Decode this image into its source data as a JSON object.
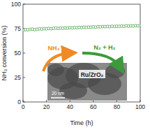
{
  "chart_data": {
    "type": "scatter",
    "x_label": "Time (h)",
    "y_label": "NH₃ conversion (%)",
    "x": [
      0,
      2,
      4,
      6,
      8,
      10,
      12,
      14,
      16,
      18,
      20,
      22,
      24,
      26,
      28,
      30,
      32,
      34,
      36,
      38,
      40,
      42,
      44,
      46,
      48,
      50,
      52,
      54,
      56,
      58,
      60,
      62,
      64,
      66,
      68,
      70,
      72,
      74,
      76,
      78,
      80,
      82,
      84,
      86,
      88,
      90,
      92,
      94,
      96,
      98,
      100
    ],
    "values": [
      73.5,
      74,
      73.8,
      74.2,
      74.5,
      74,
      74.3,
      74.8,
      74.6,
      75,
      74.8,
      75.2,
      75,
      75.3,
      75.5,
      75.2,
      75.6,
      75.4,
      75.8,
      75.6,
      76,
      75.8,
      76.1,
      76,
      76.3,
      76.2,
      76.5,
      76.3,
      76.6,
      76.5,
      76.8,
      76.6,
      77,
      76.8,
      77.1,
      77,
      77.2,
      77.1,
      77.4,
      77.2,
      77.5,
      77.4,
      77.6,
      77.5,
      77.8,
      77.6,
      77.9,
      77.7,
      78,
      77.9,
      78.2
    ],
    "color": "#3c9a3c",
    "marker": "circle-open",
    "xlim": [
      0,
      100
    ],
    "xticks": [
      0,
      20,
      40,
      60,
      80,
      100
    ],
    "ylim": [
      0,
      100
    ],
    "yticks": [
      0,
      25,
      50,
      75,
      100
    ],
    "annotations": [
      "NH₃",
      "N₂ + H₂",
      "Ru/ZrO₂",
      "20 nm"
    ]
  }
}
